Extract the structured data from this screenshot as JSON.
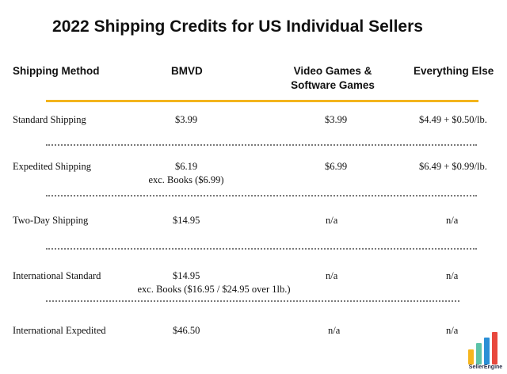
{
  "title": "2022 Shipping Credits for US Individual Sellers",
  "columns": {
    "method": "Shipping Method",
    "bmvd": "BMVD",
    "video_line1": "Video Games &",
    "video_line2": "Software Games",
    "else": "Everything Else"
  },
  "rows": [
    {
      "method": "Standard Shipping",
      "bmvd": "$3.99",
      "bmvd_note": "",
      "video": "$3.99",
      "else": "$4.49 + $0.50/lb."
    },
    {
      "method": "Expedited Shipping",
      "bmvd": "$6.19",
      "bmvd_note": "exc. Books ($6.99)",
      "video": "$6.99",
      "else": "$6.49 + $0.99/lb."
    },
    {
      "method": "Two-Day Shipping",
      "bmvd": "$14.95",
      "bmvd_note": "",
      "video": "n/a",
      "else": "n/a"
    },
    {
      "method": "International Standard",
      "bmvd": "$14.95",
      "bmvd_note": "exc. Books ($16.95 / $24.95 over 1lb.)",
      "video": "n/a",
      "else": "n/a"
    },
    {
      "method": "International Expedited",
      "bmvd": "$46.50",
      "bmvd_note": "",
      "video": "n/a",
      "else": "n/a"
    }
  ],
  "logo": {
    "name": "SellerEngine",
    "bar_colors": [
      "#f5b51e",
      "#5cc3a8",
      "#2a8fd6",
      "#e8483d"
    ]
  }
}
